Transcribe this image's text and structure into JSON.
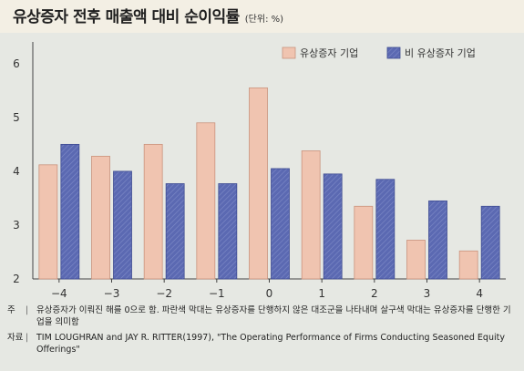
{
  "header": {
    "title": "유상증자 전후 매출액 대비 순이익률",
    "unit": "(단위: %)"
  },
  "legend": [
    {
      "label": "유상증자 기업",
      "color": "#f0c4b0"
    },
    {
      "label": "비 유상증자 기업",
      "color": "#5b69b2"
    }
  ],
  "notes": {
    "note_label": "주",
    "note_text": "유상증자가 이뤄진 해를 0으로 함. 파란색 막대는 유상증자를 단행하지 않은 대조군을 나타내며 살구색 막대는 유상증자를 단행한 기업을 의미함",
    "source_label": "자료",
    "source_text": "TIM LOUGHRAN and JAY R. RITTER(1997), \"The Operating Performance of Firms Conducting Seasoned Equity Offerings\""
  },
  "chart_data": {
    "type": "bar",
    "categories": [
      "−4",
      "−3",
      "−2",
      "−1",
      "0",
      "1",
      "2",
      "3",
      "4"
    ],
    "series": [
      {
        "name": "유상증자 기업",
        "color": "#f0c4b0",
        "values": [
          4.12,
          4.28,
          4.5,
          4.9,
          5.55,
          4.38,
          3.35,
          2.72,
          2.52
        ]
      },
      {
        "name": "비 유상증자 기업",
        "color": "#5b69b2",
        "values": [
          4.5,
          4.0,
          3.77,
          3.77,
          4.05,
          3.95,
          3.85,
          3.45,
          3.35
        ]
      }
    ],
    "yticks": [
      2,
      3,
      4,
      5,
      6
    ],
    "ylim": [
      2,
      6.2
    ],
    "grid": false,
    "legend_position": "top-right"
  }
}
